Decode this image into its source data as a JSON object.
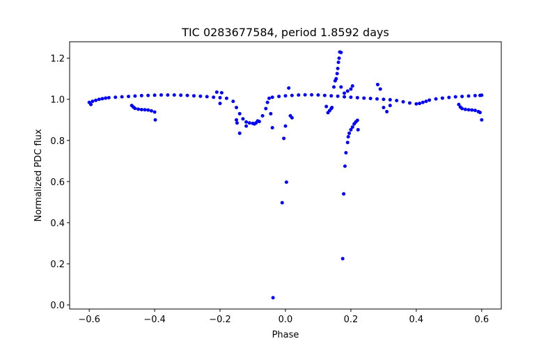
{
  "chart_data": {
    "type": "scatter",
    "title": "TIC 0283677584, period 1.8592 days",
    "xlabel": "Phase",
    "ylabel": "Normalized PDC flux",
    "xlim": [
      -0.66,
      0.66
    ],
    "ylim": [
      -0.02,
      1.28
    ],
    "xticks": [
      -0.6,
      -0.4,
      -0.2,
      0.0,
      0.2,
      0.4,
      0.6
    ],
    "xtick_labels": [
      "−0.6",
      "−0.4",
      "−0.2",
      "0.0",
      "0.2",
      "0.4",
      "0.6"
    ],
    "yticks": [
      0.0,
      0.2,
      0.4,
      0.6,
      0.8,
      1.0,
      1.2
    ],
    "ytick_labels": [
      "0.0",
      "0.2",
      "0.4",
      "0.6",
      "0.8",
      "1.0",
      "1.2"
    ],
    "grid": false,
    "marker_color": "#0000ff",
    "series": [
      {
        "points": [
          [
            -0.6,
            0.985
          ],
          [
            -0.595,
            0.975
          ],
          [
            -0.59,
            0.99
          ],
          [
            -0.58,
            0.995
          ],
          [
            -0.57,
            1.0
          ],
          [
            -0.56,
            1.003
          ],
          [
            -0.55,
            1.006
          ],
          [
            -0.54,
            1.008
          ],
          [
            -0.52,
            1.01
          ],
          [
            -0.5,
            1.012
          ],
          [
            -0.48,
            1.014
          ],
          [
            -0.46,
            1.016
          ],
          [
            -0.44,
            1.018
          ],
          [
            -0.42,
            1.019
          ],
          [
            -0.4,
            1.02
          ],
          [
            -0.38,
            1.021
          ],
          [
            -0.36,
            1.021
          ],
          [
            -0.34,
            1.021
          ],
          [
            -0.32,
            1.02
          ],
          [
            -0.3,
            1.019
          ],
          [
            -0.28,
            1.017
          ],
          [
            -0.26,
            1.015
          ],
          [
            -0.24,
            1.013
          ],
          [
            -0.22,
            1.01
          ],
          [
            -0.2,
            1.008
          ],
          [
            -0.18,
            1.005
          ],
          [
            -0.16,
            0.99
          ],
          [
            -0.15,
            0.96
          ],
          [
            -0.14,
            0.93
          ],
          [
            -0.13,
            0.905
          ],
          [
            -0.12,
            0.89
          ],
          [
            -0.11,
            0.885
          ],
          [
            -0.1,
            0.883
          ],
          [
            -0.09,
            0.885
          ],
          [
            -0.08,
            0.892
          ],
          [
            -0.07,
            0.92
          ],
          [
            -0.06,
            0.955
          ],
          [
            -0.055,
            0.985
          ],
          [
            -0.05,
            1.005
          ],
          [
            -0.04,
            1.01
          ],
          [
            -0.02,
            1.014
          ],
          [
            0.0,
            1.017
          ],
          [
            0.02,
            1.019
          ],
          [
            0.04,
            1.021
          ],
          [
            0.06,
            1.022
          ],
          [
            0.08,
            1.022
          ],
          [
            0.1,
            1.021
          ],
          [
            0.12,
            1.019
          ],
          [
            0.14,
            1.017
          ],
          [
            0.16,
            1.015
          ],
          [
            0.18,
            1.012
          ],
          [
            0.2,
            1.01
          ],
          [
            0.22,
            1.008
          ],
          [
            0.24,
            1.006
          ],
          [
            0.26,
            1.004
          ],
          [
            0.28,
            1.002
          ],
          [
            0.3,
            1.0
          ],
          [
            0.32,
            0.998
          ],
          [
            0.34,
            0.994
          ],
          [
            0.36,
            0.988
          ],
          [
            0.38,
            0.982
          ],
          [
            0.4,
            0.978
          ],
          [
            0.41,
            0.98
          ],
          [
            0.42,
            0.985
          ],
          [
            0.43,
            0.99
          ],
          [
            0.44,
            0.996
          ],
          [
            0.46,
            1.002
          ],
          [
            0.48,
            1.006
          ],
          [
            0.5,
            1.009
          ],
          [
            0.52,
            1.012
          ],
          [
            0.54,
            1.014
          ],
          [
            0.56,
            1.016
          ],
          [
            0.58,
            1.018
          ],
          [
            0.595,
            1.019
          ],
          [
            0.6,
            1.02
          ],
          [
            -0.47,
            0.97
          ],
          [
            -0.465,
            0.962
          ],
          [
            -0.46,
            0.956
          ],
          [
            -0.45,
            0.952
          ],
          [
            -0.44,
            0.95
          ],
          [
            -0.43,
            0.949
          ],
          [
            -0.42,
            0.948
          ],
          [
            -0.41,
            0.944
          ],
          [
            -0.4,
            0.938
          ],
          [
            -0.398,
            0.9
          ],
          [
            0.53,
            0.975
          ],
          [
            0.535,
            0.962
          ],
          [
            0.54,
            0.955
          ],
          [
            0.55,
            0.951
          ],
          [
            0.56,
            0.949
          ],
          [
            0.57,
            0.948
          ],
          [
            0.58,
            0.946
          ],
          [
            0.59,
            0.94
          ],
          [
            0.595,
            0.936
          ],
          [
            0.6,
            0.9
          ],
          [
            -0.21,
            1.035
          ],
          [
            -0.2,
            0.98
          ],
          [
            -0.195,
            1.032
          ],
          [
            -0.15,
            0.9
          ],
          [
            -0.148,
            0.885
          ],
          [
            -0.14,
            0.835
          ],
          [
            -0.12,
            0.87
          ],
          [
            -0.095,
            0.88
          ],
          [
            -0.085,
            0.895
          ],
          [
            -0.045,
            0.93
          ],
          [
            -0.04,
            0.862
          ],
          [
            -0.038,
            0.035
          ],
          [
            -0.01,
            0.497
          ],
          [
            -0.005,
            0.81
          ],
          [
            0.0,
            0.87
          ],
          [
            0.003,
            0.597
          ],
          [
            0.01,
            1.055
          ],
          [
            0.015,
            0.92
          ],
          [
            0.02,
            0.91
          ],
          [
            0.125,
            0.965
          ],
          [
            0.13,
            0.935
          ],
          [
            0.135,
            0.945
          ],
          [
            0.14,
            0.955
          ],
          [
            0.142,
            0.96
          ],
          [
            0.148,
            1.06
          ],
          [
            0.152,
            1.09
          ],
          [
            0.155,
            1.1
          ],
          [
            0.158,
            1.125
          ],
          [
            0.16,
            1.15
          ],
          [
            0.162,
            1.18
          ],
          [
            0.164,
            1.2
          ],
          [
            0.166,
            1.23
          ],
          [
            0.17,
            1.228
          ],
          [
            0.17,
            1.06
          ],
          [
            0.175,
            0.225
          ],
          [
            0.178,
            0.54
          ],
          [
            0.182,
            0.675
          ],
          [
            0.185,
            0.74
          ],
          [
            0.19,
            0.79
          ],
          [
            0.192,
            0.818
          ],
          [
            0.195,
            0.835
          ],
          [
            0.2,
            0.852
          ],
          [
            0.205,
            0.865
          ],
          [
            0.21,
            0.88
          ],
          [
            0.215,
            0.89
          ],
          [
            0.22,
            0.898
          ],
          [
            0.222,
            0.852
          ],
          [
            0.18,
            1.03
          ],
          [
            0.19,
            1.04
          ],
          [
            0.2,
            1.05
          ],
          [
            0.205,
            1.065
          ],
          [
            0.282,
            1.072
          ],
          [
            0.29,
            1.05
          ],
          [
            0.3,
            0.96
          ],
          [
            0.31,
            0.94
          ],
          [
            0.32,
            0.97
          ]
        ]
      }
    ]
  }
}
